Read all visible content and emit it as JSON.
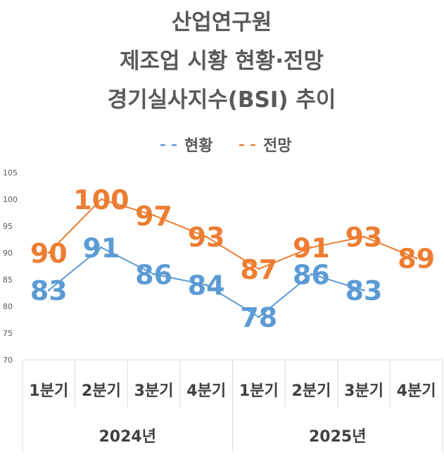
{
  "chart_data": {
    "type": "line",
    "title_lines": [
      "산업연구원",
      "제조업 시황 현황·전망",
      "경기실사지수(BSI) 추이"
    ],
    "categories": [
      "1분기",
      "2분기",
      "3분기",
      "4분기",
      "1분기",
      "2분기",
      "3분기",
      "4분기"
    ],
    "groups": [
      {
        "label": "2024년",
        "categories": [
          "1분기",
          "2분기",
          "3분기",
          "4분기"
        ]
      },
      {
        "label": "2025년",
        "categories": [
          "1분기",
          "2분기",
          "3분기",
          "4분기"
        ]
      }
    ],
    "series": [
      {
        "name": "현황",
        "color": "#5B9BD5",
        "line_style": "dashed-legend",
        "values": [
          83,
          91,
          86,
          84,
          78,
          86,
          83,
          null
        ]
      },
      {
        "name": "전망",
        "color": "#ED7D31",
        "line_style": "dashed-legend",
        "values": [
          90,
          100,
          97,
          93,
          87,
          91,
          93,
          89
        ]
      }
    ],
    "ylim": [
      70,
      105
    ],
    "yticks": [
      70,
      75,
      80,
      85,
      90,
      95,
      100,
      105
    ],
    "grid": false,
    "legend_position": "top",
    "xlabel": "",
    "ylabel": ""
  }
}
